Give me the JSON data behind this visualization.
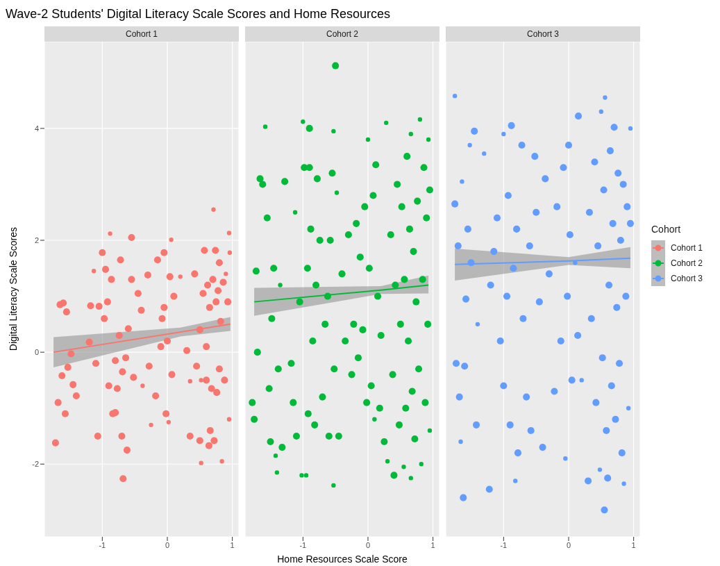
{
  "chart_data": [
    {
      "type": "bubble",
      "title": "Wave-2 Students' Digital Literacy Scale Scores and Home Resources",
      "subtitle": "Cohort 1",
      "ylabel": "Digital Literacy Scale Scores",
      "xlim": [
        -1.89,
        1.1
      ],
      "xticks": [
        -1,
        0,
        1
      ],
      "ylim": [
        -3.3,
        5.55
      ],
      "yticks": [
        -2,
        0,
        2,
        4
      ],
      "grid": true,
      "legend": "right",
      "series": [
        {
          "name": "Cohort 1",
          "marker": "circle",
          "color": "#f8766d",
          "x": [
            -1.72,
            -1.68,
            -1.65,
            -1.6,
            -1.62,
            -1.57,
            -1.55,
            -1.53,
            -1.45,
            -1.4,
            -1.48,
            -1.2,
            -1.18,
            -1.13,
            -1.1,
            -1.07,
            -1.05,
            -1.0,
            -0.97,
            -0.95,
            -0.92,
            -0.9,
            -0.88,
            -0.86,
            -0.84,
            -0.8,
            -0.8,
            -0.77,
            -0.74,
            -0.72,
            -0.69,
            -0.68,
            -0.7,
            -0.64,
            -0.62,
            -0.6,
            -0.55,
            -0.55,
            -0.52,
            -0.45,
            -0.4,
            -0.38,
            -0.3,
            -0.28,
            -0.25,
            -0.18,
            -0.15,
            -0.08,
            -0.05,
            -0.02,
            0.0,
            0.02,
            0.04,
            0.06,
            0.07,
            0.1,
            0.2,
            0.3,
            0.35,
            0.35,
            0.42,
            0.45,
            0.5,
            0.52,
            0.52,
            0.55,
            0.57,
            0.6,
            0.62,
            0.64,
            0.66,
            0.68,
            0.7,
            0.71,
            0.72,
            0.74,
            0.75,
            0.76,
            0.78,
            0.8,
            0.82,
            0.84,
            0.86,
            0.88,
            0.9,
            0.93,
            0.95,
            0.95,
            0.96,
            0.5,
            0.6,
            0.65,
            0.8,
            -0.1,
            -0.05
          ],
          "values": [
            -1.62,
            -0.9,
            0.85,
            0.88,
            -0.42,
            -1.1,
            0.72,
            -0.27,
            -0.58,
            -0.78,
            -0.03,
            0.18,
            0.83,
            1.45,
            -0.2,
            -1.5,
            0.82,
            1.78,
            0.6,
            1.48,
            0.9,
            -0.6,
            2.12,
            1.3,
            -1.1,
            -0.15,
            -1.08,
            -0.65,
            0.3,
            1.65,
            -0.35,
            -2.26,
            -1.5,
            -0.1,
            -1.75,
            0.42,
            2.05,
            1.3,
            -0.45,
            1.05,
            0.75,
            -0.6,
            1.38,
            -0.25,
            -1.3,
            -0.78,
            1.65,
            0.6,
            1.78,
            -1.1,
            0.2,
            -1.25,
            1.35,
            2.01,
            -0.4,
            1.0,
            1.35,
            0.03,
            -0.52,
            -1.5,
            1.4,
            -0.25,
            -1.58,
            -1.98,
            -0.5,
            1.05,
            1.82,
            -0.5,
            1.2,
            -1.67,
            -1.4,
            -0.65,
            1.3,
            2.55,
            -1.58,
            1.82,
            0.9,
            -0.72,
            1.1,
            -0.3,
            0.55,
            -1.95,
            1.25,
            -0.5,
            1.4,
            0.9,
            2.13,
            -1.2,
            1.78,
            0.4,
            0.1,
            0.8,
            1.6,
            0.1,
            0.8
          ],
          "sizes": [
            1,
            1,
            1,
            1,
            1,
            1,
            1,
            1,
            1,
            1,
            1,
            1,
            1,
            0.4,
            1,
            1,
            1,
            1,
            1,
            1,
            1,
            1,
            0.4,
            1,
            1,
            1,
            1,
            1,
            1,
            1,
            1,
            1,
            1,
            1,
            1,
            1,
            1,
            1,
            1,
            1,
            1,
            0.4,
            1,
            1,
            0.4,
            1,
            1,
            1,
            1,
            1,
            1,
            0.4,
            1,
            0.4,
            1,
            1,
            0.4,
            1,
            0.4,
            1,
            1,
            1,
            1,
            0.4,
            0.4,
            1,
            1,
            1,
            1,
            1,
            1,
            1,
            1,
            0.4,
            1,
            1,
            1,
            1,
            1,
            1,
            1,
            0.4,
            1,
            1,
            0.4,
            1,
            0.4,
            0.4,
            0.4,
            1,
            1,
            1,
            1,
            1,
            1
          ]
        },
        {
          "type": "line",
          "color": "#f8766d",
          "x": [
            -1.75,
            0.2,
            0.97
          ],
          "values": [
            0.0,
            0.36,
            0.5
          ],
          "lower": [
            -0.27,
            0.28,
            0.38
          ],
          "upper": [
            0.27,
            0.44,
            0.63
          ]
        }
      ]
    },
    {
      "type": "bubble",
      "subtitle": "Cohort 2",
      "xlabel": "Home Resources Scale Score",
      "xlim": [
        -1.89,
        1.1
      ],
      "xticks": [
        -1,
        0,
        1
      ],
      "ylim": [
        -3.3,
        5.55
      ],
      "yticks": [
        -2,
        0,
        2,
        4
      ],
      "grid": true,
      "tick_labels": "x",
      "legend": "right",
      "series": [
        {
          "name": "Cohort 2",
          "marker": "circle",
          "color": "#00ba38",
          "x": [
            -1.78,
            -1.75,
            -1.72,
            -1.7,
            -1.66,
            -1.62,
            -1.58,
            -1.55,
            -1.52,
            -1.5,
            -1.48,
            -1.45,
            -1.42,
            -1.4,
            -1.38,
            -1.35,
            -1.32,
            -1.28,
            -1.18,
            -1.15,
            -1.12,
            -1.1,
            -1.05,
            -1.02,
            -1.0,
            -0.98,
            -0.95,
            -0.93,
            -0.92,
            -0.9,
            -0.9,
            -0.88,
            -0.85,
            -0.82,
            -0.8,
            -0.78,
            -0.74,
            -0.7,
            -0.66,
            -0.62,
            -0.6,
            -0.58,
            -0.55,
            -0.52,
            -0.5,
            -0.48,
            -0.53,
            -0.53,
            -0.45,
            -0.4,
            -0.35,
            -0.3,
            -0.25,
            -0.22,
            -0.18,
            -0.15,
            -0.12,
            -0.08,
            -0.05,
            -0.02,
            0.0,
            0.02,
            0.05,
            0.08,
            0.1,
            0.12,
            0.15,
            0.18,
            0.2,
            0.25,
            0.28,
            0.3,
            0.35,
            0.38,
            0.4,
            0.42,
            0.45,
            0.48,
            0.5,
            0.52,
            0.55,
            0.56,
            0.58,
            0.6,
            0.62,
            0.64,
            0.66,
            0.66,
            0.68,
            0.7,
            0.72,
            0.74,
            0.76,
            0.78,
            0.8,
            0.82,
            0.84,
            0.86,
            0.88,
            0.9,
            0.92,
            0.93,
            0.95,
            0.95
          ],
          "values": [
            -0.9,
            -1.2,
            1.45,
            0.0,
            3.1,
            3.0,
            4.03,
            2.4,
            -0.65,
            -1.6,
            0.6,
            1.5,
            -1.85,
            -2.15,
            -0.3,
            1.2,
            -1.7,
            3.05,
            -0.2,
            -0.9,
            2.5,
            -1.5,
            0.9,
            -2.2,
            4.12,
            3.3,
            -2.2,
            1.5,
            -1.1,
            3.3,
            4.0,
            2.2,
            0.2,
            -1.3,
            1.2,
            3.1,
            2.0,
            -0.8,
            0.5,
            1.0,
            -1.5,
            2.0,
            3.2,
            -0.3,
            5.12,
            2.85,
            3.95,
            -2.38,
            -1.5,
            1.4,
            0.2,
            2.1,
            -0.4,
            0.5,
            2.3,
            -0.1,
            1.7,
            0.4,
            2.6,
            -0.9,
            3.8,
            1.5,
            -0.6,
            2.8,
            -1.2,
            3.35,
            1.0,
            -1.0,
            0.3,
            -1.6,
            4.1,
            -1.95,
            2.1,
            -0.4,
            -2.2,
            1.2,
            3.0,
            -1.3,
            0.5,
            2.6,
            -2.05,
            1.3,
            -1.0,
            3.5,
            0.2,
            2.2,
            -2.25,
            3.9,
            -0.7,
            1.8,
            -1.55,
            0.9,
            2.7,
            -0.3,
            4.16,
            -2.0,
            1.3,
            3.3,
            -0.9,
            2.4,
            0.5,
            3.8,
            -1.4,
            2.9
          ],
          "sizes": [
            1,
            1,
            1,
            1,
            1,
            1,
            0.4,
            1,
            1,
            1,
            1,
            1,
            0.4,
            0.4,
            1,
            0.4,
            1,
            1,
            1,
            1,
            0.4,
            1,
            1,
            0.4,
            0.4,
            1,
            0.4,
            1,
            1,
            1,
            1,
            1,
            1,
            1,
            1,
            1,
            1,
            1,
            1,
            1,
            1,
            1,
            1,
            1,
            1,
            0.4,
            0.4,
            0.4,
            1,
            1,
            1,
            1,
            1,
            1,
            1,
            1,
            1,
            1,
            1,
            1,
            0.4,
            1,
            1,
            1,
            0.4,
            1,
            1,
            1,
            1,
            1,
            0.4,
            0.4,
            1,
            1,
            1,
            1,
            1,
            1,
            1,
            1,
            0.4,
            1,
            1,
            1,
            1,
            1,
            0.4,
            0.4,
            1,
            1,
            1,
            1,
            1,
            1,
            0.4,
            0.4,
            1,
            1,
            1,
            1,
            1,
            0.4,
            0.4,
            1
          ]
        },
        {
          "type": "line",
          "color": "#00ba38",
          "x": [
            -1.75,
            0.2,
            0.93
          ],
          "values": [
            0.9,
            1.11,
            1.2
          ],
          "lower": [
            0.65,
            1.04,
            1.05
          ],
          "upper": [
            1.15,
            1.18,
            1.37
          ]
        }
      ]
    },
    {
      "type": "bubble",
      "subtitle": "Cohort 3",
      "legend_title": "Cohort",
      "legend": "right",
      "xlim": [
        -1.89,
        1.1
      ],
      "xticks": [
        -1,
        0,
        1
      ],
      "ylim": [
        -3.3,
        5.55
      ],
      "yticks": [
        -2,
        0,
        2,
        4
      ],
      "grid": true,
      "tick_labels": "x",
      "series": [
        {
          "name": "Cohort 3",
          "marker": "circle",
          "color": "#619cff",
          "x": [
            -1.75,
            -1.75,
            -1.73,
            -1.7,
            -1.68,
            -1.66,
            -1.64,
            -1.62,
            -1.6,
            -1.58,
            -1.55,
            -1.52,
            -1.5,
            -1.45,
            -1.42,
            -1.4,
            -1.3,
            -1.22,
            -1.2,
            -1.15,
            -1.1,
            -1.05,
            -1.0,
            -1.0,
            -0.95,
            -0.93,
            -0.9,
            -0.88,
            -0.85,
            -0.82,
            -0.8,
            -0.78,
            -0.72,
            -0.7,
            -0.65,
            -0.6,
            -0.58,
            -0.52,
            -0.5,
            -0.45,
            -0.4,
            -0.36,
            -0.3,
            -0.22,
            -0.18,
            -0.12,
            -0.08,
            -0.05,
            -0.02,
            0.0,
            0.02,
            0.05,
            0.1,
            0.15,
            0.14,
            0.2,
            0.3,
            0.32,
            0.35,
            0.4,
            0.42,
            0.45,
            0.48,
            0.5,
            0.52,
            0.54,
            0.55,
            0.56,
            0.58,
            0.6,
            0.62,
            0.64,
            0.66,
            0.68,
            0.7,
            0.72,
            0.74,
            0.76,
            0.78,
            0.8,
            0.82,
            0.84,
            0.85,
            0.88,
            0.9,
            0.92,
            0.95,
            0.95
          ],
          "values": [
            4.58,
            2.65,
            -0.2,
            1.9,
            -0.8,
            -1.6,
            3.05,
            -2.6,
            -0.25,
            0.95,
            2.2,
            3.7,
            1.6,
            3.95,
            -1.3,
            0.5,
            3.55,
            -2.45,
            1.2,
            1.8,
            2.4,
            0.2,
            -0.6,
            3.9,
            1.0,
            2.8,
            -1.3,
            4.05,
            1.5,
            -2.3,
            2.2,
            -1.8,
            3.7,
            0.6,
            -0.8,
            1.9,
            -1.4,
            3.5,
            2.5,
            0.9,
            -1.7,
            3.1,
            1.4,
            -0.7,
            2.6,
            0.2,
            3.3,
            -1.9,
            1.0,
            3.7,
            2.1,
            -0.5,
            1.6,
            4.22,
            0.3,
            -0.5,
            -2.3,
            2.5,
            0.6,
            3.4,
            -0.9,
            1.9,
            -2.1,
            4.3,
            -0.1,
            2.9,
            -2.82,
            4.55,
            -1.4,
            -2.25,
            1.2,
            3.6,
            -0.6,
            2.3,
            4.02,
            -1.2,
            0.8,
            3.2,
            -0.2,
            2.0,
            -1.8,
            3.0,
            -2.35,
            1.0,
            2.6,
            -1.0,
            4.0,
            2.3
          ],
          "sizes": [
            0.4,
            1,
            1,
            1,
            1,
            0.4,
            0.4,
            1,
            1,
            1,
            1,
            0.4,
            1,
            1,
            1,
            0.4,
            0.4,
            1,
            1,
            1,
            1,
            1,
            1,
            0.4,
            1,
            1,
            1,
            1,
            1,
            0.4,
            1,
            1,
            1,
            1,
            1,
            1,
            1,
            1,
            1,
            1,
            1,
            1,
            1,
            1,
            1,
            1,
            1,
            0.4,
            1,
            1,
            1,
            1,
            0.4,
            1,
            1,
            0.4,
            1,
            1,
            1,
            1,
            1,
            1,
            0.4,
            0.4,
            1,
            1,
            1,
            0.4,
            1,
            1,
            1,
            1,
            1,
            1,
            1,
            1,
            1,
            1,
            1,
            1,
            1,
            1,
            0.4,
            1,
            1,
            0.4,
            0.4,
            1
          ]
        },
        {
          "type": "line",
          "color": "#619cff",
          "x": [
            -1.75,
            0.0,
            0.95
          ],
          "values": [
            1.57,
            1.63,
            1.68
          ],
          "lower": [
            1.28,
            1.56,
            1.5
          ],
          "upper": [
            1.85,
            1.7,
            1.88
          ]
        }
      ]
    }
  ]
}
